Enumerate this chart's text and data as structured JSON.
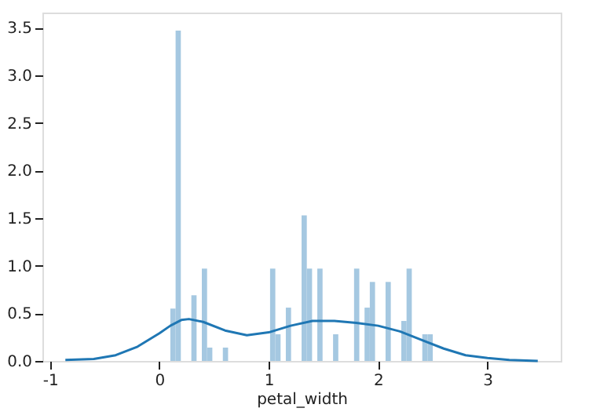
{
  "chart_data": {
    "type": "histogram",
    "xlabel": "petal_width",
    "xlim": [
      -1.07,
      3.67
    ],
    "ylim": [
      0,
      3.66
    ],
    "xticks": [
      -1,
      0,
      1,
      2,
      3
    ],
    "yticks": [
      {
        "value": 0,
        "label": "0.0"
      },
      {
        "value": 0.5,
        "label": "0.5"
      },
      {
        "value": 1,
        "label": "1.0"
      },
      {
        "value": 1.5,
        "label": "1.5"
      },
      {
        "value": 2,
        "label": "2.0"
      },
      {
        "value": 2.5,
        "label": "2.5"
      },
      {
        "value": 3,
        "label": "3.0"
      },
      {
        "value": 3.5,
        "label": "3.5"
      }
    ],
    "grid": false,
    "series": [
      {
        "color": "#a5c8e1",
        "bins": [
          0.1,
          0.148,
          0.196,
          0.244,
          0.292,
          0.34,
          0.388,
          0.436,
          0.484,
          0.532,
          0.58,
          0.628,
          0.676,
          0.724,
          0.772,
          0.82,
          0.868,
          0.916,
          0.964,
          1.012,
          1.06,
          1.108,
          1.156,
          1.204,
          1.252,
          1.3,
          1.348,
          1.396,
          1.444,
          1.492,
          1.54,
          1.588,
          1.636,
          1.684,
          1.732,
          1.78,
          1.828,
          1.876,
          1.924,
          1.972,
          2.02,
          2.068,
          2.116,
          2.164,
          2.212,
          2.26,
          2.308,
          2.356,
          2.404,
          2.452,
          2.5
        ],
        "values": [
          0.55,
          3.47,
          0,
          0,
          0.69,
          0,
          0.97,
          0.14,
          0,
          0,
          0.14,
          0,
          0,
          0,
          0,
          0,
          0,
          0,
          0,
          0.97,
          0.28,
          0,
          0.56,
          0,
          0,
          1.53,
          0.97,
          0,
          0.97,
          0,
          0,
          0.28,
          0,
          0,
          0,
          0.97,
          0,
          0.56,
          0.83,
          0,
          0,
          0.83,
          0,
          0,
          0.42,
          0.97,
          0,
          0,
          0.28,
          0.28
        ]
      },
      {
        "type": "line",
        "color": "#1f77b4",
        "x": [
          -0.86,
          -0.6,
          -0.4,
          -0.2,
          0,
          0.1,
          0.2,
          0.27,
          0.4,
          0.6,
          0.8,
          1.0,
          1.2,
          1.4,
          1.6,
          1.8,
          2.0,
          2.2,
          2.4,
          2.6,
          2.8,
          3.0,
          3.2,
          3.46
        ],
        "values": [
          0.01,
          0.02,
          0.06,
          0.15,
          0.29,
          0.37,
          0.43,
          0.44,
          0.41,
          0.32,
          0.27,
          0.3,
          0.37,
          0.42,
          0.42,
          0.4,
          0.37,
          0.31,
          0.22,
          0.13,
          0.06,
          0.03,
          0.01,
          0
        ]
      }
    ]
  }
}
